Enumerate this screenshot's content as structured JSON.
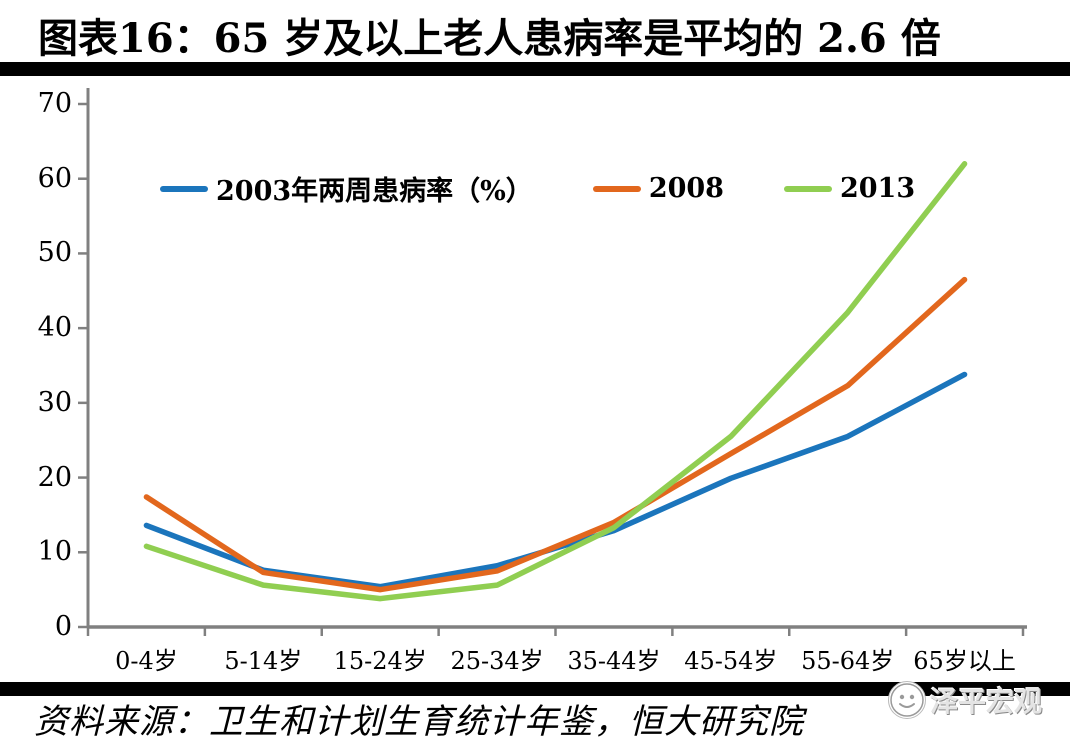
{
  "title": "图表16：65 岁及以上老人患病率是平均的 2.6 倍",
  "source_note": "资料来源：卫生和计划生育统计年鉴，恒大研究院",
  "watermark": {
    "text": "泽平宏观",
    "logo": "zeping-macro-logo"
  },
  "colors": {
    "series_2003": "#1b75bc",
    "series_2008": "#e2671d",
    "series_2013": "#90ce51",
    "axis": "#808080",
    "divider_bar": "#000000",
    "background": "#ffffff"
  },
  "chart_data": {
    "type": "line",
    "title": "图表16：65 岁及以上老人患病率是平均的 2.6 倍",
    "categories": [
      "0-4岁",
      "5-14岁",
      "15-24岁",
      "25-34岁",
      "35-44岁",
      "45-54岁",
      "55-64岁",
      "65岁以上"
    ],
    "series": [
      {
        "name": "2003年两周患病率（%）",
        "color": "#1b75bc",
        "values": [
          13.6,
          7.6,
          5.4,
          8.2,
          12.9,
          19.9,
          25.5,
          33.8
        ]
      },
      {
        "name": "2008",
        "color": "#e2671d",
        "values": [
          17.4,
          7.3,
          5.0,
          7.5,
          14.0,
          23.2,
          32.3,
          46.5
        ]
      },
      {
        "name": "2013",
        "color": "#90ce51",
        "values": [
          10.8,
          5.6,
          3.8,
          5.6,
          13.3,
          25.5,
          42.1,
          62.0
        ]
      }
    ],
    "xlabel": "",
    "ylabel": "",
    "ylim": [
      0,
      70
    ],
    "yticks": [
      0,
      10,
      20,
      30,
      40,
      50,
      60,
      70
    ],
    "legend_position": "top",
    "grid": false
  }
}
